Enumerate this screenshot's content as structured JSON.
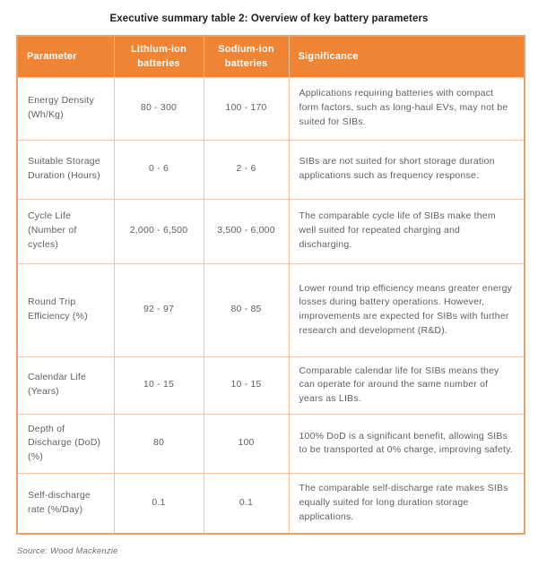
{
  "title": "Executive summary table 2: Overview of key battery parameters",
  "source_note": "Source: Wood Mackenzie",
  "colors": {
    "header_bg": "#EE8434",
    "header_text": "#FFFFFF",
    "border_outer": "#F09E68",
    "border_inner": "#F8C29B",
    "cell_text": "#5D6064"
  },
  "table": {
    "headers": {
      "parameter": "Parameter",
      "lithium": "Lithium-ion batteries",
      "sodium": "Sodium-ion batteries",
      "significance": "Significance"
    },
    "rows": [
      {
        "parameter": "Energy Density (Wh/Kg)",
        "lithium": "80 - 300",
        "sodium": "100 - 170",
        "significance": "Applications requiring batteries with compact form factors, such as long-haul EVs, may not be suited for SIBs."
      },
      {
        "parameter": "Suitable Storage Duration (Hours)",
        "lithium": "0 - 6",
        "sodium": "2 - 6",
        "significance": "SIBs are not suited for short storage duration applications such as frequency response."
      },
      {
        "parameter": "Cycle Life (Number of cycles)",
        "lithium": "2,000 - 6,500",
        "sodium": "3,500 - 6,000",
        "significance": "The comparable cycle life of SIBs make them well suited for repeated charging and discharging."
      },
      {
        "parameter": "Round Trip Efficiency (%)",
        "lithium": "92 - 97",
        "sodium": "80 - 85",
        "significance": "Lower round trip efficiency means greater energy losses during battery operations. However, improvements are expected for SIBs with further research and development (R&D)."
      },
      {
        "parameter": "Calendar Life (Years)",
        "lithium": "10 - 15",
        "sodium": "10 - 15",
        "significance": "Comparable calendar life for SIBs means they can operate for around the same number of years as LIBs."
      },
      {
        "parameter": "Depth of Discharge (DoD) (%)",
        "lithium": "80",
        "sodium": "100",
        "significance": "100% DoD is a significant benefit, allowing SIBs to be transported at 0% charge, improving safety."
      },
      {
        "parameter": "Self-discharge rate (%/Day)",
        "lithium": "0.1",
        "sodium": "0.1",
        "significance": "The comparable self-discharge rate makes SIBs equally suited for long duration storage applications."
      }
    ]
  }
}
